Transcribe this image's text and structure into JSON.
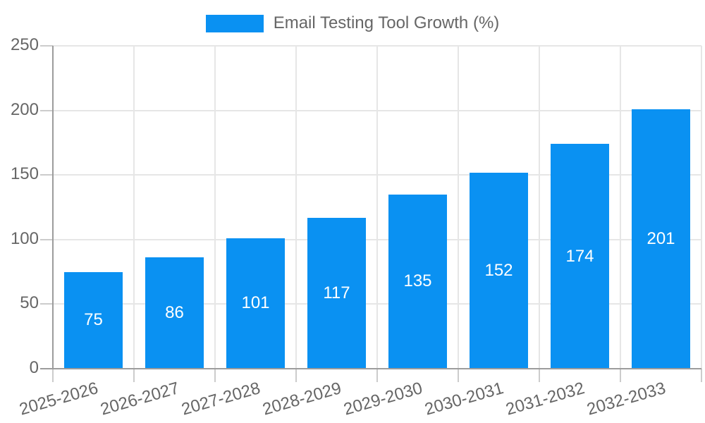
{
  "chart_data": {
    "type": "bar",
    "title": "Email Testing Tool Growth (%)",
    "legend": {
      "label": "Email Testing Tool Growth (%)",
      "position": "top-center"
    },
    "categories": [
      "2025-2026",
      "2026-2027",
      "2027-2028",
      "2028-2029",
      "2029-2030",
      "2030-2031",
      "2031-2032",
      "2032-2033"
    ],
    "values": [
      75,
      86,
      101,
      117,
      135,
      152,
      174,
      201
    ],
    "value_labels": [
      "75",
      "86",
      "101",
      "117",
      "135",
      "152",
      "174",
      "201"
    ],
    "xlabel": "",
    "ylabel": "",
    "ylim": [
      0,
      250
    ],
    "yticks": [
      0,
      50,
      100,
      150,
      200,
      250
    ],
    "ytick_labels": [
      "0",
      "50",
      "100",
      "150",
      "200",
      "250"
    ],
    "grid": true,
    "xtick_rotation_deg": -16,
    "colors": {
      "bar": "#0a91f2",
      "value_text": "#ffffff",
      "axis_text": "#666666",
      "legend_text": "#666666",
      "gridline": "#e6e6e6",
      "axis_line": "#9c9c9c",
      "background": "#ffffff"
    }
  }
}
